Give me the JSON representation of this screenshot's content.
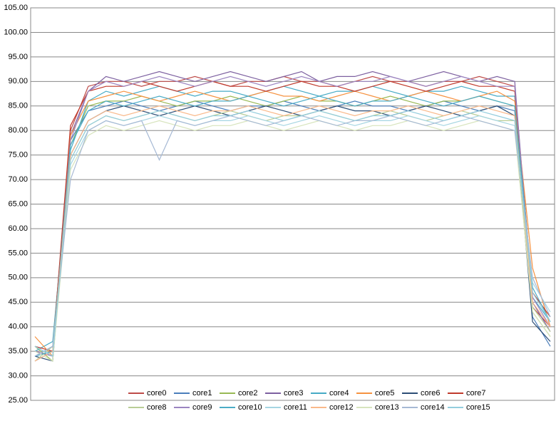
{
  "chart_data": {
    "type": "line",
    "ylim": [
      25,
      105
    ],
    "yticks": [
      {
        "value": 25,
        "label": "25.00"
      },
      {
        "value": 30,
        "label": "30.00"
      },
      {
        "value": 35,
        "label": "35.00"
      },
      {
        "value": 40,
        "label": "40.00"
      },
      {
        "value": 45,
        "label": "45.00"
      },
      {
        "value": 50,
        "label": "50.00"
      },
      {
        "value": 55,
        "label": "55.00"
      },
      {
        "value": 60,
        "label": "60.00"
      },
      {
        "value": 65,
        "label": "65.00"
      },
      {
        "value": 70,
        "label": "70.00"
      },
      {
        "value": 75,
        "label": "75.00"
      },
      {
        "value": 80,
        "label": "80.00"
      },
      {
        "value": 85,
        "label": "85.00"
      },
      {
        "value": 90,
        "label": "90.00"
      },
      {
        "value": 95,
        "label": "95.00"
      },
      {
        "value": 100,
        "label": "100.00"
      },
      {
        "value": 105,
        "label": "105.00"
      }
    ],
    "grid": true,
    "legend": "bottom",
    "series": [
      {
        "name": "core0",
        "color": "#be4b48",
        "values": [
          35,
          34,
          80,
          89,
          90,
          90,
          89,
          90,
          90,
          91,
          90,
          89,
          90,
          90,
          91,
          90,
          90,
          89,
          90,
          91,
          90,
          90,
          89,
          90,
          90,
          91,
          90,
          89,
          44,
          40
        ]
      },
      {
        "name": "core1",
        "color": "#4a7ebb",
        "values": [
          34,
          36,
          78,
          84,
          85,
          86,
          85,
          84,
          85,
          86,
          85,
          84,
          85,
          85,
          86,
          85,
          84,
          85,
          86,
          85,
          85,
          84,
          85,
          86,
          85,
          84,
          85,
          84,
          42,
          36
        ]
      },
      {
        "name": "core2",
        "color": "#98b954",
        "values": [
          36,
          33,
          77,
          85,
          86,
          86,
          87,
          86,
          85,
          86,
          86,
          87,
          86,
          85,
          86,
          87,
          86,
          86,
          85,
          86,
          87,
          86,
          85,
          86,
          86,
          87,
          86,
          85,
          43,
          38
        ]
      },
      {
        "name": "core3",
        "color": "#7d60a0",
        "values": [
          33,
          35,
          79,
          88,
          91,
          90,
          91,
          92,
          91,
          90,
          91,
          92,
          91,
          90,
          91,
          92,
          90,
          91,
          91,
          92,
          91,
          90,
          91,
          92,
          91,
          90,
          91,
          90,
          45,
          39
        ]
      },
      {
        "name": "core4",
        "color": "#46aac5",
        "values": [
          35,
          37,
          76,
          86,
          88,
          87,
          88,
          89,
          88,
          87,
          88,
          88,
          87,
          88,
          89,
          88,
          87,
          88,
          88,
          89,
          88,
          87,
          88,
          88,
          89,
          88,
          87,
          87,
          46,
          41
        ]
      },
      {
        "name": "core5",
        "color": "#f69240",
        "values": [
          38,
          34,
          79,
          86,
          87,
          88,
          87,
          86,
          87,
          88,
          87,
          86,
          87,
          88,
          87,
          87,
          86,
          87,
          88,
          87,
          86,
          87,
          88,
          87,
          86,
          87,
          88,
          86,
          52,
          40
        ]
      },
      {
        "name": "core6",
        "color": "#2c4d75",
        "values": [
          34,
          33,
          75,
          82,
          84,
          85,
          84,
          83,
          84,
          85,
          84,
          83,
          84,
          85,
          84,
          83,
          84,
          85,
          84,
          84,
          83,
          84,
          85,
          84,
          83,
          84,
          85,
          83,
          41,
          37
        ]
      },
      {
        "name": "core7",
        "color": "#c0392b",
        "values": [
          36,
          35,
          81,
          88,
          89,
          89,
          90,
          89,
          88,
          89,
          90,
          89,
          89,
          88,
          89,
          90,
          89,
          89,
          88,
          89,
          90,
          89,
          88,
          89,
          90,
          89,
          89,
          88,
          47,
          42
        ]
      },
      {
        "name": "core8",
        "color": "#b9cd96",
        "values": [
          33,
          36,
          74,
          81,
          83,
          82,
          83,
          84,
          83,
          82,
          83,
          84,
          83,
          82,
          83,
          83,
          84,
          83,
          82,
          83,
          84,
          83,
          82,
          83,
          84,
          83,
          82,
          82,
          44,
          39
        ]
      },
      {
        "name": "core9",
        "color": "#9b84c0",
        "values": [
          35,
          34,
          78,
          88,
          90,
          89,
          90,
          91,
          90,
          89,
          90,
          91,
          90,
          89,
          90,
          91,
          90,
          89,
          90,
          90,
          91,
          90,
          89,
          90,
          91,
          90,
          89,
          89,
          46,
          40
        ]
      },
      {
        "name": "core10",
        "color": "#4bacc6",
        "values": [
          34,
          35,
          77,
          84,
          86,
          85,
          86,
          87,
          86,
          85,
          86,
          86,
          87,
          86,
          85,
          86,
          87,
          86,
          85,
          86,
          86,
          87,
          86,
          85,
          86,
          87,
          86,
          85,
          48,
          41
        ]
      },
      {
        "name": "core11",
        "color": "#a5d5e2",
        "values": [
          36,
          34,
          73,
          80,
          82,
          81,
          82,
          83,
          82,
          81,
          82,
          82,
          83,
          82,
          81,
          82,
          83,
          82,
          81,
          82,
          82,
          83,
          82,
          81,
          82,
          83,
          82,
          81,
          49,
          43
        ]
      },
      {
        "name": "core12",
        "color": "#f9b98a",
        "values": [
          33,
          35,
          75,
          82,
          84,
          83,
          84,
          85,
          84,
          83,
          84,
          84,
          85,
          84,
          83,
          84,
          85,
          84,
          83,
          84,
          84,
          85,
          84,
          83,
          84,
          85,
          84,
          83,
          45,
          40
        ]
      },
      {
        "name": "core13",
        "color": "#d7e4bd",
        "values": [
          35,
          33,
          72,
          79,
          81,
          80,
          81,
          82,
          81,
          80,
          81,
          81,
          82,
          81,
          80,
          81,
          82,
          81,
          80,
          81,
          81,
          82,
          81,
          80,
          81,
          82,
          81,
          80,
          43,
          38
        ]
      },
      {
        "name": "core14",
        "color": "#a6b9d4",
        "values": [
          34,
          36,
          70,
          80,
          82,
          81,
          82,
          74,
          82,
          81,
          82,
          83,
          82,
          81,
          82,
          83,
          82,
          81,
          82,
          82,
          83,
          82,
          81,
          82,
          83,
          82,
          81,
          80,
          50,
          42
        ]
      },
      {
        "name": "core15",
        "color": "#93cddd",
        "values": [
          36,
          34,
          74,
          81,
          83,
          82,
          83,
          84,
          83,
          82,
          83,
          83,
          84,
          83,
          82,
          83,
          84,
          83,
          82,
          83,
          83,
          84,
          83,
          82,
          83,
          84,
          83,
          82,
          47,
          41
        ]
      }
    ]
  }
}
